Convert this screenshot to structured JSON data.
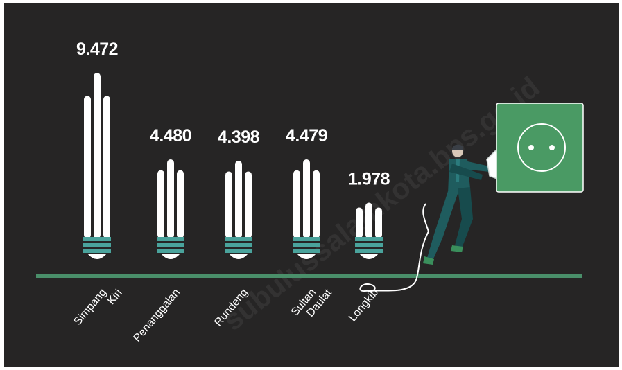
{
  "chart_data": {
    "type": "bar",
    "title": "",
    "xlabel": "",
    "ylabel": "",
    "categories": [
      [
        "Simpang",
        "Kiri"
      ],
      [
        "Penanggalan"
      ],
      [
        "Rundeng"
      ],
      [
        "Sultan",
        "Daulat"
      ],
      [
        "Longkib"
      ]
    ],
    "values": [
      9472,
      4480,
      4398,
      4479,
      1978
    ],
    "value_labels": [
      "9.472",
      "4.480",
      "4.398",
      "4.479",
      "1.978"
    ],
    "ylim": [
      0,
      10000
    ],
    "grid": false,
    "legend": "none",
    "colors": {
      "background": "#262525",
      "baseline": "#4a8f6a",
      "bulb_tube": "#ffffff",
      "bulb_base": "#4aa39c",
      "socket": "#4a9a64"
    }
  },
  "watermark": "subulussalamkota.bps.go.id",
  "illustration": {
    "figure_icon": "man-plugging-cable-icon",
    "socket_icon": "wall-socket-icon",
    "plug_icon": "plug-icon"
  }
}
